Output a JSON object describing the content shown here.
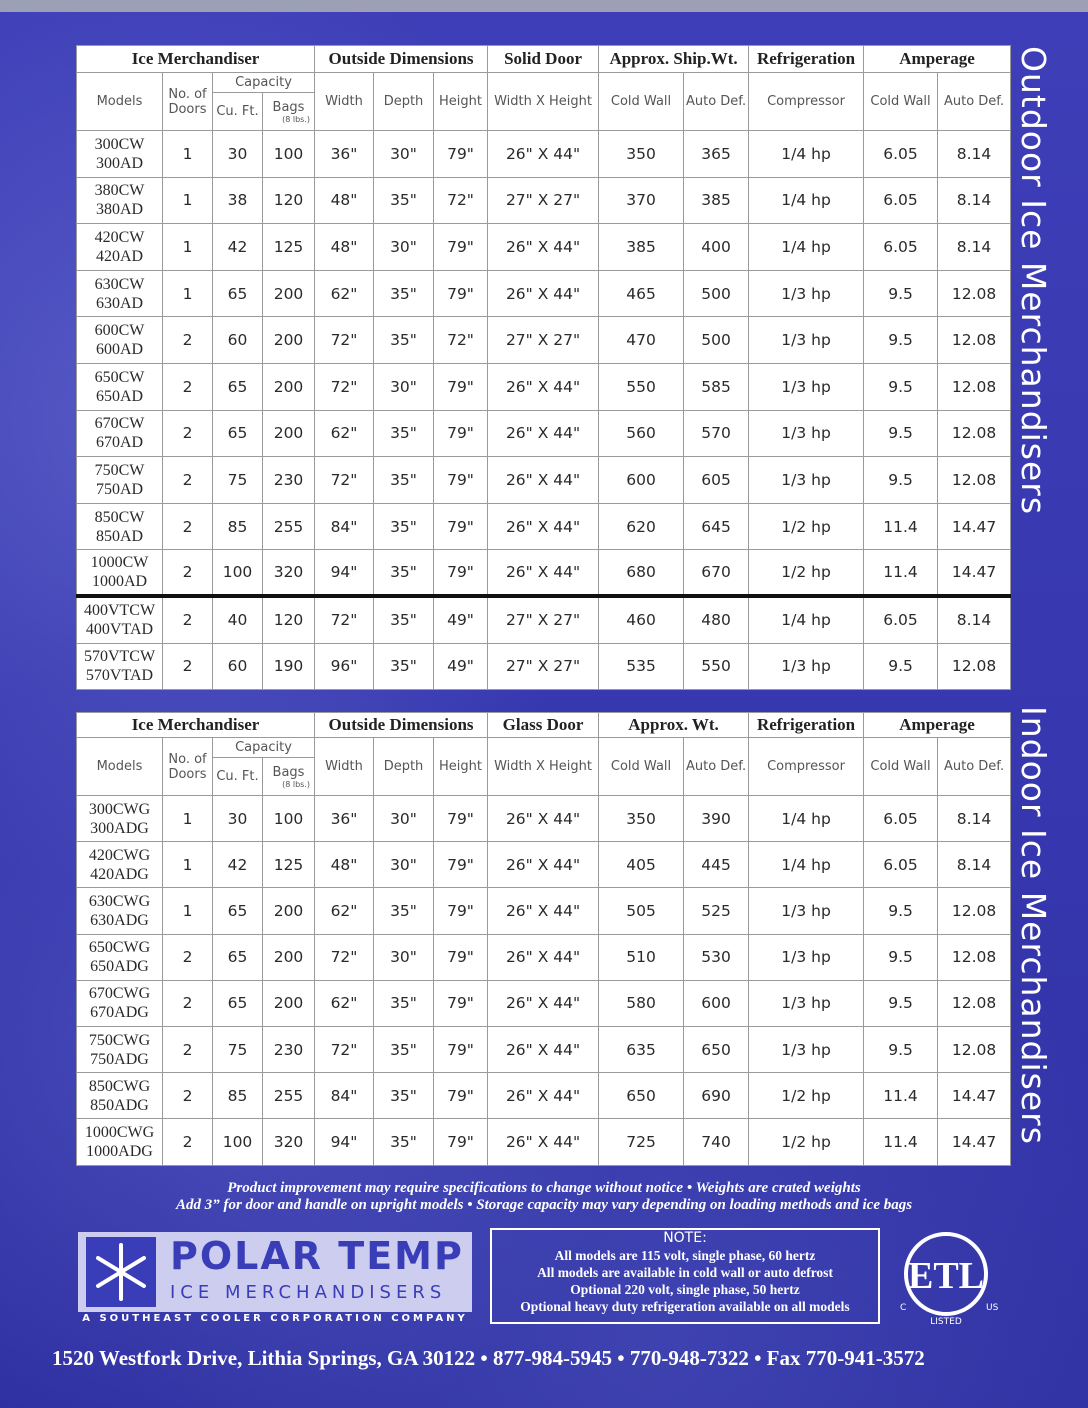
{
  "outdoor": {
    "side_title": "Outdoor Ice Merchandisers",
    "groups": [
      "Ice Merchandiser",
      "Outside Dimensions",
      "Solid Door",
      "Approx. Ship.Wt.",
      "Refrigeration",
      "Amperage"
    ],
    "capacity": "Capacity",
    "bags_note": "(8 lbs.)",
    "columns": [
      "Models",
      "No. of Doors",
      "Cu. Ft.",
      "Bags",
      "Width",
      "Depth",
      "Height",
      "Width X Height",
      "Cold Wall",
      "Auto Def.",
      "Compressor",
      "Cold Wall",
      "Auto Def."
    ],
    "rows": [
      {
        "models": [
          "300CW",
          "300AD"
        ],
        "cells": [
          "1",
          "30",
          "100",
          "36\"",
          "30\"",
          "79\"",
          "26\" X 44\"",
          "350",
          "365",
          "1/4 hp",
          "6.05",
          "8.14"
        ]
      },
      {
        "models": [
          "380CW",
          "380AD"
        ],
        "cells": [
          "1",
          "38",
          "120",
          "48\"",
          "35\"",
          "72\"",
          "27\" X 27\"",
          "370",
          "385",
          "1/4 hp",
          "6.05",
          "8.14"
        ]
      },
      {
        "models": [
          "420CW",
          "420AD"
        ],
        "cells": [
          "1",
          "42",
          "125",
          "48\"",
          "30\"",
          "79\"",
          "26\" X 44\"",
          "385",
          "400",
          "1/4 hp",
          "6.05",
          "8.14"
        ]
      },
      {
        "models": [
          "630CW",
          "630AD"
        ],
        "cells": [
          "1",
          "65",
          "200",
          "62\"",
          "35\"",
          "79\"",
          "26\" X 44\"",
          "465",
          "500",
          "1/3 hp",
          "9.5",
          "12.08"
        ]
      },
      {
        "models": [
          "600CW",
          "600AD"
        ],
        "cells": [
          "2",
          "60",
          "200",
          "72\"",
          "35\"",
          "72\"",
          "27\" X 27\"",
          "470",
          "500",
          "1/3 hp",
          "9.5",
          "12.08"
        ]
      },
      {
        "models": [
          "650CW",
          "650AD"
        ],
        "cells": [
          "2",
          "65",
          "200",
          "72\"",
          "30\"",
          "79\"",
          "26\" X 44\"",
          "550",
          "585",
          "1/3 hp",
          "9.5",
          "12.08"
        ]
      },
      {
        "models": [
          "670CW",
          "670AD"
        ],
        "cells": [
          "2",
          "65",
          "200",
          "62\"",
          "35\"",
          "79\"",
          "26\" X 44\"",
          "560",
          "570",
          "1/3 hp",
          "9.5",
          "12.08"
        ]
      },
      {
        "models": [
          "750CW",
          "750AD"
        ],
        "cells": [
          "2",
          "75",
          "230",
          "72\"",
          "35\"",
          "79\"",
          "26\" X 44\"",
          "600",
          "605",
          "1/3 hp",
          "9.5",
          "12.08"
        ]
      },
      {
        "models": [
          "850CW",
          "850AD"
        ],
        "cells": [
          "2",
          "85",
          "255",
          "84\"",
          "35\"",
          "79\"",
          "26\" X 44\"",
          "620",
          "645",
          "1/2 hp",
          "11.4",
          "14.47"
        ]
      },
      {
        "models": [
          "1000CW",
          "1000AD"
        ],
        "cells": [
          "2",
          "100",
          "320",
          "94\"",
          "35\"",
          "79\"",
          "26\" X 44\"",
          "680",
          "670",
          "1/2 hp",
          "11.4",
          "14.47"
        ]
      },
      {
        "models": [
          "400VTCW",
          "400VTAD"
        ],
        "cells": [
          "2",
          "40",
          "120",
          "72\"",
          "35\"",
          "49\"",
          "27\" X 27\"",
          "460",
          "480",
          "1/4 hp",
          "6.05",
          "8.14"
        ]
      },
      {
        "models": [
          "570VTCW",
          "570VTAD"
        ],
        "cells": [
          "2",
          "60",
          "190",
          "96\"",
          "35\"",
          "49\"",
          "27\" X 27\"",
          "535",
          "550",
          "1/3 hp",
          "9.5",
          "12.08"
        ]
      }
    ]
  },
  "indoor": {
    "side_title": "Indoor Ice Merchandisers",
    "groups": [
      "Ice Merchandiser",
      "Outside Dimensions",
      "Glass Door",
      "Approx. Wt.",
      "Refrigeration",
      "Amperage"
    ],
    "capacity": "Capacity",
    "bags_note": "(8 lbs.)",
    "columns": [
      "Models",
      "No. of Doors",
      "Cu. Ft.",
      "Bags",
      "Width",
      "Depth",
      "Height",
      "Width X Height",
      "Cold Wall",
      "Auto Def.",
      "Compressor",
      "Cold Wall",
      "Auto Def."
    ],
    "rows": [
      {
        "models": [
          "300CWG",
          "300ADG"
        ],
        "cells": [
          "1",
          "30",
          "100",
          "36\"",
          "30\"",
          "79\"",
          "26\" X 44\"",
          "350",
          "390",
          "1/4 hp",
          "6.05",
          "8.14"
        ]
      },
      {
        "models": [
          "420CWG",
          "420ADG"
        ],
        "cells": [
          "1",
          "42",
          "125",
          "48\"",
          "30\"",
          "79\"",
          "26\" X 44\"",
          "405",
          "445",
          "1/4 hp",
          "6.05",
          "8.14"
        ]
      },
      {
        "models": [
          "630CWG",
          "630ADG"
        ],
        "cells": [
          "1",
          "65",
          "200",
          "62\"",
          "35\"",
          "79\"",
          "26\" X 44\"",
          "505",
          "525",
          "1/3 hp",
          "9.5",
          "12.08"
        ]
      },
      {
        "models": [
          "650CWG",
          "650ADG"
        ],
        "cells": [
          "2",
          "65",
          "200",
          "72\"",
          "30\"",
          "79\"",
          "26\" X 44\"",
          "510",
          "530",
          "1/3 hp",
          "9.5",
          "12.08"
        ]
      },
      {
        "models": [
          "670CWG",
          "670ADG"
        ],
        "cells": [
          "2",
          "65",
          "200",
          "62\"",
          "35\"",
          "79\"",
          "26\" X 44\"",
          "580",
          "600",
          "1/3 hp",
          "9.5",
          "12.08"
        ]
      },
      {
        "models": [
          "750CWG",
          "750ADG"
        ],
        "cells": [
          "2",
          "75",
          "230",
          "72\"",
          "35\"",
          "79\"",
          "26\" X 44\"",
          "635",
          "650",
          "1/3 hp",
          "9.5",
          "12.08"
        ]
      },
      {
        "models": [
          "850CWG",
          "850ADG"
        ],
        "cells": [
          "2",
          "85",
          "255",
          "84\"",
          "35\"",
          "79\"",
          "26\" X 44\"",
          "650",
          "690",
          "1/2 hp",
          "11.4",
          "14.47"
        ]
      },
      {
        "models": [
          "1000CWG",
          "1000ADG"
        ],
        "cells": [
          "2",
          "100",
          "320",
          "94\"",
          "35\"",
          "79\"",
          "26\" X 44\"",
          "725",
          "740",
          "1/2 hp",
          "11.4",
          "14.47"
        ]
      }
    ]
  },
  "footnotes": [
    "Product improvement may require specifications to change without notice • Weights are crated weights",
    "Add 3” for door and handle on upright models • Storage capacity may vary depending on loading methods and ice bags"
  ],
  "logo": {
    "brand": "POLAR TEMP",
    "tagline": "ICE MERCHANDISERS",
    "company": "A SOUTHEAST COOLER CORPORATION COMPANY"
  },
  "note": {
    "title": "NOTE:",
    "lines": [
      "All models are 115 volt, single phase, 60 hertz",
      "All models are available in cold wall or auto defrost",
      "Optional 220 volt, single phase, 50 hertz",
      "Optional heavy duty refrigeration available on all models"
    ]
  },
  "etl": {
    "mark": "ETL",
    "left": "C",
    "bottom": "LISTED",
    "right": "US"
  },
  "address": "1520 Westfork Drive, Lithia Springs, GA 30122 • 877-984-5945 • 770-948-7322 • Fax 770-941-3572"
}
